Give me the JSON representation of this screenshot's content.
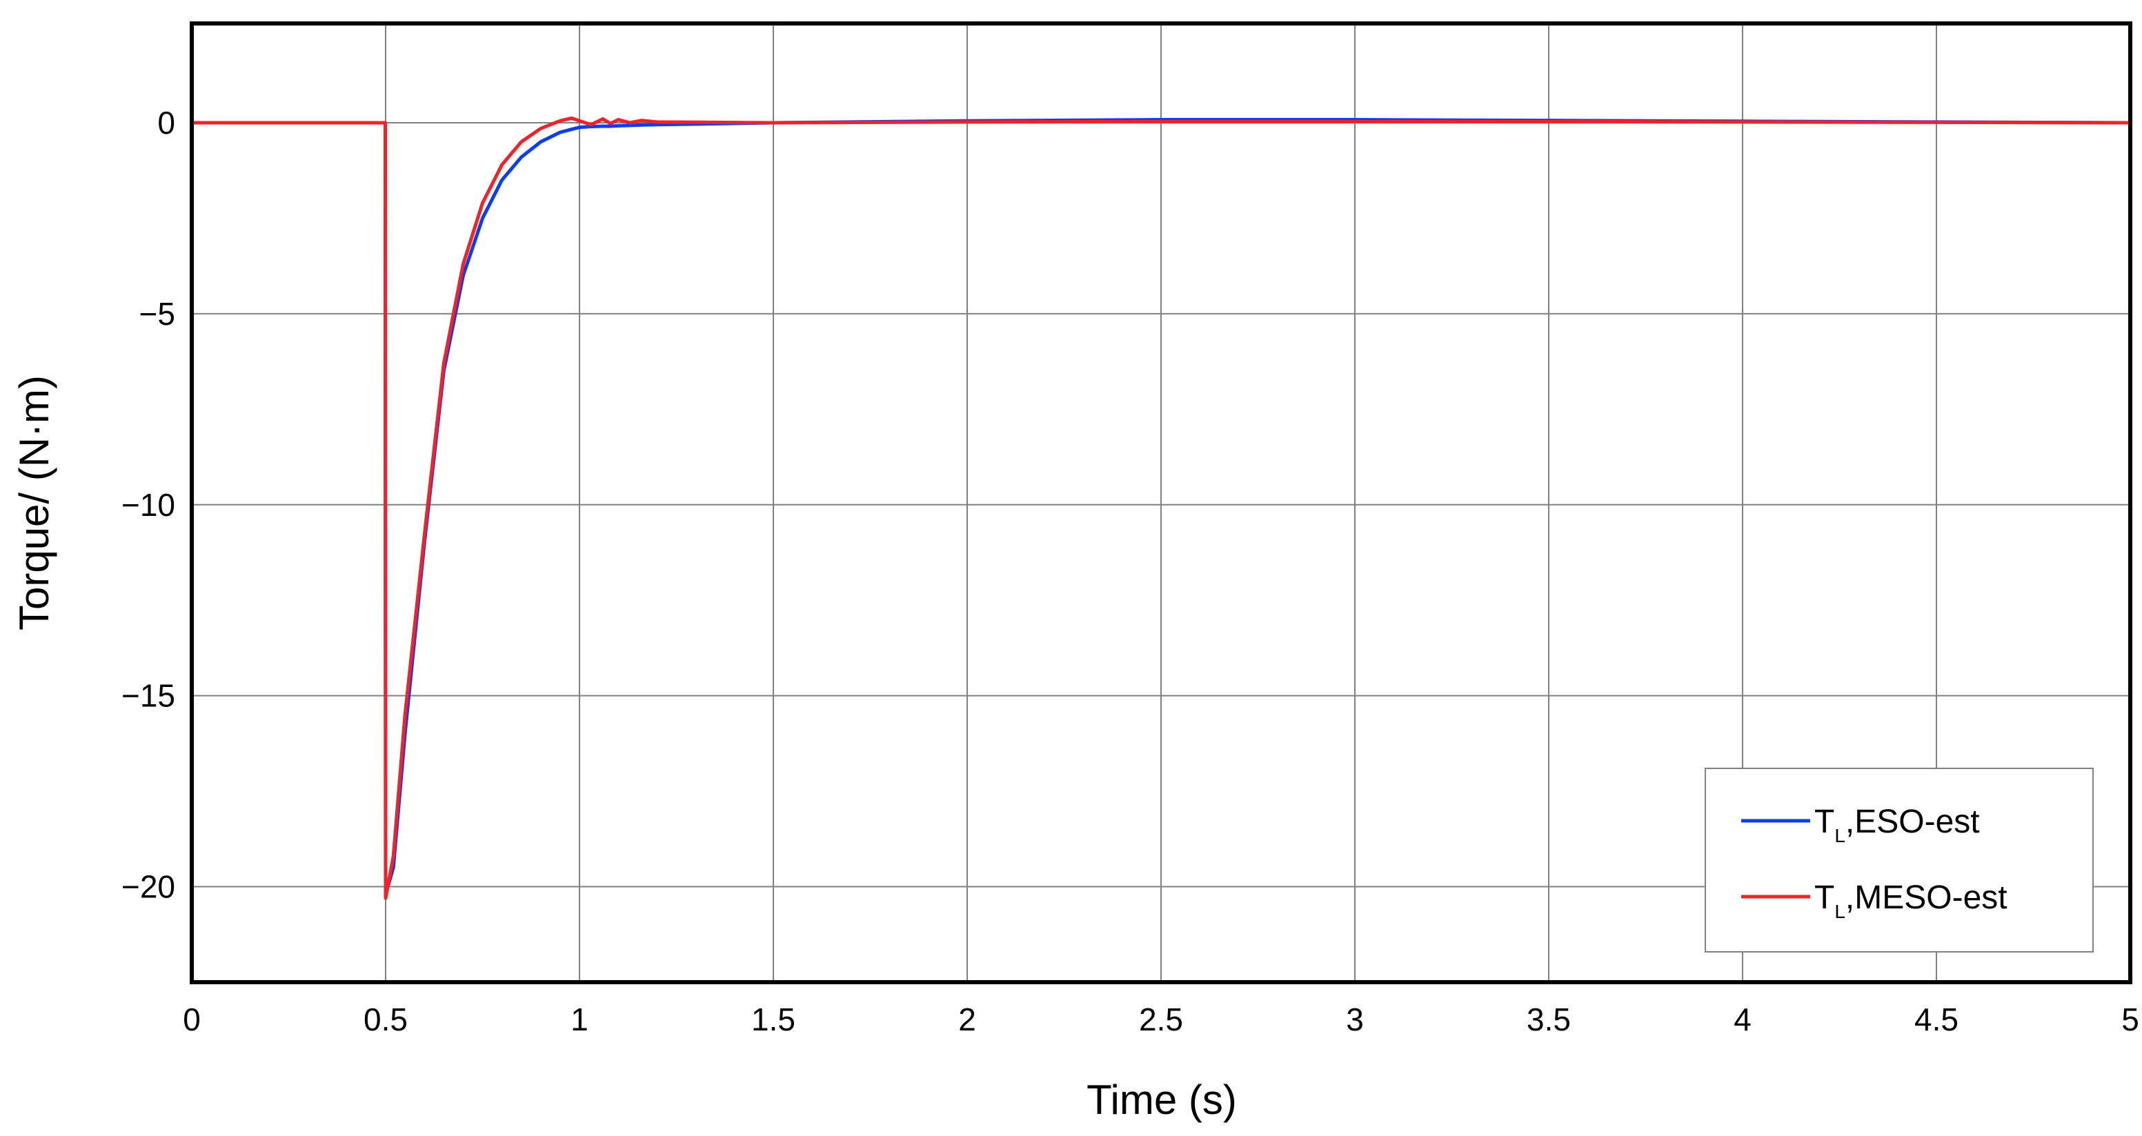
{
  "chart_data": {
    "type": "line",
    "xlabel": "Time (s)",
    "ylabel": "Torque/ (N·m)",
    "x": [
      0,
      0.499,
      0.5,
      0.52,
      0.55,
      0.6,
      0.65,
      0.7,
      0.75,
      0.8,
      0.85,
      0.9,
      0.95,
      0.98,
      1.0,
      1.03,
      1.06,
      1.08,
      1.1,
      1.13,
      1.16,
      1.2,
      1.5,
      2,
      2.5,
      3,
      3.5,
      4,
      4.5,
      5
    ],
    "series": [
      {
        "name": "TL,ESO-est",
        "color": "#0b3ef0",
        "values": [
          0,
          0,
          -20.2,
          -19.5,
          -16,
          -11,
          -6.5,
          -4,
          -2.5,
          -1.5,
          -0.9,
          -0.5,
          -0.25,
          -0.17,
          -0.12,
          -0.1,
          -0.09,
          -0.09,
          -0.08,
          -0.07,
          -0.06,
          -0.05,
          0,
          0.05,
          0.08,
          0.08,
          0.06,
          0.04,
          0.02,
          0
        ]
      },
      {
        "name": "TL,MESO-est",
        "color": "#f0222a",
        "values": [
          0,
          0,
          -20.3,
          -19.2,
          -15.5,
          -10.8,
          -6.3,
          -3.7,
          -2.1,
          -1.1,
          -0.5,
          -0.15,
          0.05,
          0.12,
          0.05,
          -0.05,
          0.1,
          -0.02,
          0.08,
          0,
          0.06,
          0.02,
          0,
          0.02,
          0.03,
          0.03,
          0.03,
          0.02,
          0.01,
          0
        ]
      }
    ],
    "xlim": [
      0,
      5
    ],
    "xticks": [
      0,
      0.5,
      1,
      1.5,
      2,
      2.5,
      3,
      3.5,
      4,
      4.5,
      5
    ],
    "ylim": [
      -22.5,
      2.6
    ],
    "yticks": [
      {
        "value": -20,
        "label": "−20"
      },
      {
        "value": -15,
        "label": "−15"
      },
      {
        "value": -10,
        "label": "−10"
      },
      {
        "value": -5,
        "label": "−5"
      },
      0
    ],
    "grid": true,
    "legend": "lower right"
  }
}
